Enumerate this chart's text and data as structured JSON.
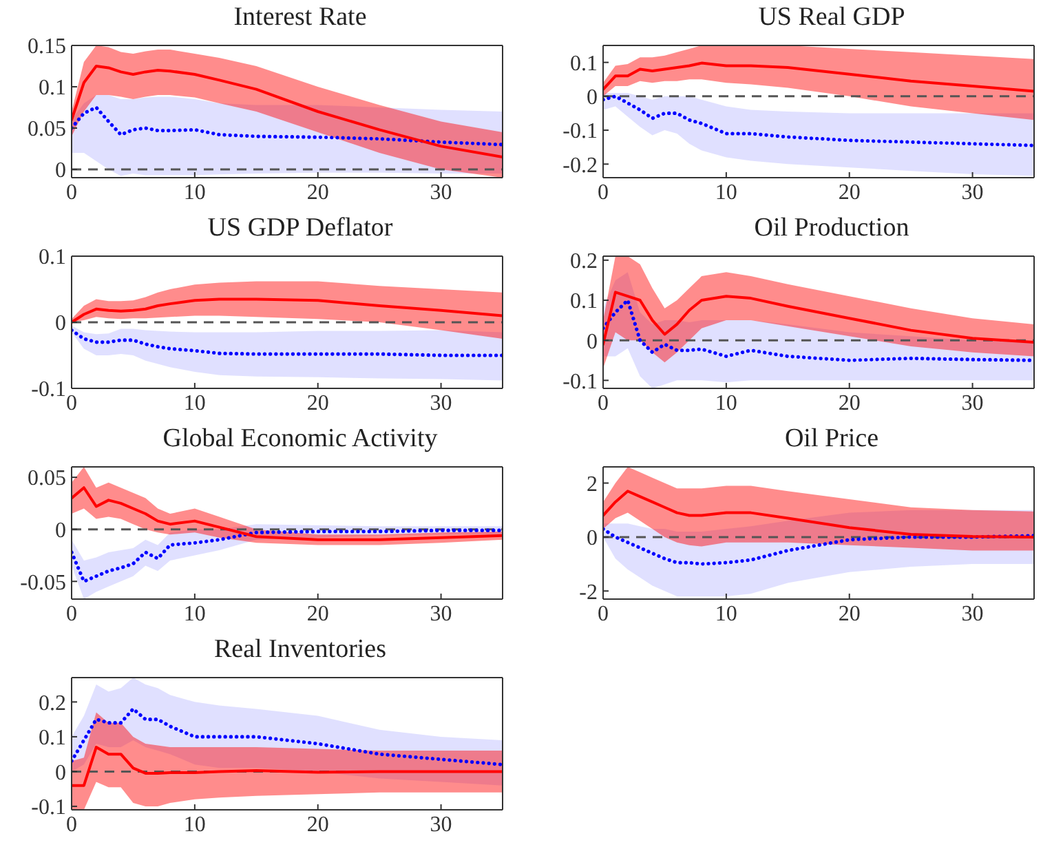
{
  "chart_data": [
    {
      "type": "line",
      "title": "Interest Rate",
      "x": [
        0,
        1,
        2,
        3,
        4,
        5,
        6,
        7,
        8,
        10,
        12,
        15,
        20,
        25,
        30,
        35
      ],
      "xlim": [
        0,
        35
      ],
      "xticks": [
        0,
        10,
        20,
        30
      ],
      "ylim": [
        -0.01,
        0.15
      ],
      "yticks": [
        0,
        0.05,
        0.1,
        0.15
      ],
      "grid": false,
      "marker": "none",
      "ref_lines": [
        {
          "axis": "y",
          "value": 0,
          "color": "#555555",
          "line_style": "dashed"
        }
      ],
      "series": [
        {
          "color": "#ff0000",
          "line_style": "solid",
          "values": [
            0.06,
            0.105,
            0.125,
            0.123,
            0.118,
            0.115,
            0.118,
            0.12,
            0.119,
            0.115,
            0.108,
            0.097,
            0.07,
            0.048,
            0.028,
            0.015
          ],
          "lower": [
            0.04,
            0.07,
            0.09,
            0.09,
            0.088,
            0.085,
            0.088,
            0.09,
            0.09,
            0.087,
            0.08,
            0.07,
            0.045,
            0.02,
            0.0,
            -0.01
          ],
          "upper": [
            0.07,
            0.13,
            0.15,
            0.148,
            0.142,
            0.14,
            0.143,
            0.145,
            0.145,
            0.14,
            0.135,
            0.125,
            0.1,
            0.078,
            0.058,
            0.045
          ]
        },
        {
          "color": "#0000ff",
          "line_style": "dotted",
          "values": [
            0.05,
            0.068,
            0.075,
            0.058,
            0.042,
            0.048,
            0.05,
            0.047,
            0.047,
            0.048,
            0.042,
            0.04,
            0.039,
            0.037,
            0.033,
            0.03
          ],
          "lower": [
            0.02,
            0.02,
            0.01,
            0.0,
            -0.008,
            -0.005,
            -0.007,
            -0.007,
            -0.007,
            -0.007,
            -0.006,
            -0.005,
            -0.004,
            -0.004,
            -0.005,
            -0.005
          ],
          "upper": [
            0.06,
            0.08,
            0.09,
            0.09,
            0.085,
            0.085,
            0.087,
            0.088,
            0.088,
            0.085,
            0.08,
            0.078,
            0.078,
            0.075,
            0.072,
            0.07
          ]
        }
      ]
    },
    {
      "type": "line",
      "title": "US Real GDP",
      "x": [
        0,
        1,
        2,
        3,
        4,
        5,
        6,
        7,
        8,
        10,
        12,
        15,
        20,
        25,
        30,
        35
      ],
      "xlim": [
        0,
        35
      ],
      "xticks": [
        0,
        10,
        20,
        30
      ],
      "ylim": [
        -0.24,
        0.15
      ],
      "yticks": [
        -0.2,
        -0.1,
        0,
        0.1
      ],
      "grid": false,
      "marker": "none",
      "ref_lines": [
        {
          "axis": "y",
          "value": 0,
          "color": "#555555",
          "line_style": "dashed"
        }
      ],
      "series": [
        {
          "color": "#ff0000",
          "line_style": "solid",
          "values": [
            0.02,
            0.06,
            0.06,
            0.08,
            0.075,
            0.08,
            0.085,
            0.09,
            0.098,
            0.09,
            0.09,
            0.085,
            0.065,
            0.045,
            0.03,
            0.015
          ],
          "lower": [
            0.0,
            0.03,
            0.03,
            0.045,
            0.04,
            0.045,
            0.045,
            0.05,
            0.05,
            0.04,
            0.035,
            0.025,
            0.0,
            -0.03,
            -0.05,
            -0.07
          ],
          "upper": [
            0.04,
            0.09,
            0.095,
            0.115,
            0.115,
            0.12,
            0.13,
            0.14,
            0.15,
            0.15,
            0.15,
            0.15,
            0.14,
            0.13,
            0.12,
            0.11
          ]
        },
        {
          "color": "#0000ff",
          "line_style": "dotted",
          "values": [
            -0.01,
            0.0,
            -0.02,
            -0.04,
            -0.065,
            -0.05,
            -0.05,
            -0.07,
            -0.08,
            -0.11,
            -0.11,
            -0.12,
            -0.13,
            -0.135,
            -0.14,
            -0.145
          ],
          "lower": [
            -0.04,
            -0.03,
            -0.06,
            -0.09,
            -0.115,
            -0.1,
            -0.11,
            -0.14,
            -0.16,
            -0.18,
            -0.19,
            -0.2,
            -0.21,
            -0.22,
            -0.23,
            -0.235
          ],
          "upper": [
            0.01,
            0.01,
            0.01,
            0.0,
            -0.01,
            0.0,
            0.0,
            0.0,
            -0.01,
            -0.03,
            -0.04,
            -0.045,
            -0.05,
            -0.05,
            -0.05,
            -0.05
          ]
        }
      ]
    },
    {
      "type": "line",
      "title": "US GDP Deflator",
      "x": [
        0,
        1,
        2,
        3,
        4,
        5,
        6,
        7,
        8,
        10,
        12,
        15,
        20,
        25,
        30,
        35
      ],
      "xlim": [
        0,
        35
      ],
      "xticks": [
        0,
        10,
        20,
        30
      ],
      "ylim": [
        -0.1,
        0.1
      ],
      "yticks": [
        -0.1,
        0,
        0.1
      ],
      "grid": false,
      "marker": "none",
      "ref_lines": [
        {
          "axis": "y",
          "value": 0,
          "color": "#555555",
          "line_style": "dashed"
        }
      ],
      "series": [
        {
          "color": "#ff0000",
          "line_style": "solid",
          "values": [
            0,
            0.012,
            0.02,
            0.018,
            0.017,
            0.018,
            0.02,
            0.025,
            0.028,
            0.033,
            0.035,
            0.035,
            0.033,
            0.025,
            0.018,
            0.01
          ],
          "lower": [
            0,
            0.003,
            0.008,
            0.006,
            0.005,
            0.006,
            0.006,
            0.007,
            0.008,
            0.01,
            0.01,
            0.008,
            0.005,
            0.0,
            -0.012,
            -0.025
          ],
          "upper": [
            0.005,
            0.025,
            0.035,
            0.032,
            0.032,
            0.033,
            0.038,
            0.045,
            0.05,
            0.057,
            0.06,
            0.062,
            0.062,
            0.055,
            0.05,
            0.045
          ]
        },
        {
          "color": "#0000ff",
          "line_style": "dotted",
          "values": [
            -0.012,
            -0.025,
            -0.03,
            -0.03,
            -0.027,
            -0.027,
            -0.033,
            -0.037,
            -0.04,
            -0.043,
            -0.047,
            -0.048,
            -0.048,
            -0.048,
            -0.05,
            -0.05
          ],
          "lower": [
            -0.015,
            -0.04,
            -0.05,
            -0.05,
            -0.048,
            -0.05,
            -0.058,
            -0.063,
            -0.068,
            -0.075,
            -0.08,
            -0.082,
            -0.083,
            -0.085,
            -0.086,
            -0.088
          ],
          "upper": [
            -0.005,
            -0.015,
            -0.018,
            -0.017,
            -0.01,
            -0.01,
            -0.012,
            -0.013,
            -0.014,
            -0.015,
            -0.015,
            -0.015,
            -0.013,
            -0.013,
            -0.012,
            -0.015
          ]
        }
      ]
    },
    {
      "type": "line",
      "title": "Oil Production",
      "x": [
        0,
        1,
        2,
        3,
        4,
        5,
        6,
        7,
        8,
        10,
        12,
        15,
        20,
        25,
        30,
        35
      ],
      "xlim": [
        0,
        35
      ],
      "xticks": [
        0,
        10,
        20,
        30
      ],
      "ylim": [
        -0.12,
        0.21
      ],
      "yticks": [
        -0.1,
        0,
        0.1,
        0.2
      ],
      "grid": false,
      "marker": "none",
      "ref_lines": [
        {
          "axis": "y",
          "value": 0,
          "color": "#555555",
          "line_style": "dashed"
        }
      ],
      "series": [
        {
          "color": "#ff0000",
          "line_style": "solid",
          "values": [
            -0.01,
            0.12,
            0.11,
            0.1,
            0.05,
            0.015,
            0.04,
            0.075,
            0.1,
            0.11,
            0.105,
            0.085,
            0.055,
            0.025,
            0.005,
            -0.005
          ],
          "lower": [
            -0.07,
            0.02,
            0.0,
            0.0,
            -0.03,
            -0.055,
            -0.03,
            0.0,
            0.03,
            0.05,
            0.05,
            0.035,
            0.01,
            -0.015,
            -0.03,
            -0.04
          ],
          "upper": [
            0.05,
            0.21,
            0.21,
            0.19,
            0.13,
            0.08,
            0.1,
            0.13,
            0.16,
            0.17,
            0.16,
            0.14,
            0.11,
            0.08,
            0.055,
            0.04
          ]
        },
        {
          "color": "#0000ff",
          "line_style": "dotted",
          "values": [
            0.03,
            0.07,
            0.1,
            0.0,
            -0.03,
            -0.01,
            -0.025,
            -0.025,
            -0.022,
            -0.04,
            -0.025,
            -0.04,
            -0.05,
            -0.045,
            -0.048,
            -0.05
          ],
          "lower": [
            -0.04,
            -0.04,
            -0.02,
            -0.09,
            -0.12,
            -0.11,
            -0.1,
            -0.1,
            -0.1,
            -0.105,
            -0.1,
            -0.1,
            -0.1,
            -0.1,
            -0.1,
            -0.1
          ],
          "upper": [
            0.08,
            0.15,
            0.17,
            0.07,
            0.04,
            0.05,
            0.05,
            0.045,
            0.05,
            0.05,
            0.05,
            0.04,
            0.02,
            0.01,
            0.0,
            -0.005
          ]
        }
      ]
    },
    {
      "type": "line",
      "title": "Global Economic Activity",
      "x": [
        0,
        1,
        2,
        3,
        4,
        5,
        6,
        7,
        8,
        10,
        12,
        15,
        20,
        25,
        30,
        35
      ],
      "xlim": [
        0,
        35
      ],
      "xticks": [
        0,
        10,
        20,
        30
      ],
      "ylim": [
        -0.067,
        0.06
      ],
      "yticks": [
        -0.05,
        0,
        0.05
      ],
      "grid": false,
      "marker": "none",
      "ref_lines": [
        {
          "axis": "y",
          "value": 0,
          "color": "#555555",
          "line_style": "dashed"
        }
      ],
      "series": [
        {
          "color": "#ff0000",
          "line_style": "solid",
          "values": [
            0.03,
            0.04,
            0.022,
            0.028,
            0.025,
            0.02,
            0.015,
            0.008,
            0.005,
            0.008,
            0.002,
            -0.007,
            -0.01,
            -0.01,
            -0.008,
            -0.006
          ],
          "lower": [
            0.015,
            0.02,
            0.01,
            0.012,
            0.01,
            0.005,
            0.0,
            -0.003,
            -0.005,
            -0.003,
            -0.008,
            -0.013,
            -0.015,
            -0.015,
            -0.013,
            -0.01
          ],
          "upper": [
            0.045,
            0.06,
            0.04,
            0.045,
            0.04,
            0.035,
            0.03,
            0.02,
            0.015,
            0.02,
            0.012,
            0.0,
            -0.005,
            -0.005,
            -0.003,
            -0.002
          ]
        },
        {
          "color": "#0000ff",
          "line_style": "dotted",
          "values": [
            -0.022,
            -0.05,
            -0.045,
            -0.04,
            -0.037,
            -0.033,
            -0.022,
            -0.028,
            -0.015,
            -0.013,
            -0.01,
            -0.003,
            -0.002,
            -0.002,
            -0.001,
            -0.001
          ],
          "lower": [
            -0.035,
            -0.067,
            -0.06,
            -0.055,
            -0.05,
            -0.045,
            -0.035,
            -0.04,
            -0.03,
            -0.025,
            -0.02,
            -0.01,
            -0.008,
            -0.006,
            -0.005,
            -0.005
          ],
          "upper": [
            -0.01,
            -0.03,
            -0.027,
            -0.022,
            -0.02,
            -0.018,
            -0.01,
            -0.015,
            -0.003,
            0.0,
            0.0,
            0.005,
            0.004,
            0.003,
            0.003,
            0.003
          ]
        }
      ]
    },
    {
      "type": "line",
      "title": "Oil Price",
      "x": [
        0,
        1,
        2,
        3,
        4,
        5,
        6,
        7,
        8,
        10,
        12,
        15,
        20,
        25,
        30,
        35
      ],
      "xlim": [
        0,
        35
      ],
      "xticks": [
        0,
        10,
        20,
        30
      ],
      "ylim": [
        -2.3,
        2.6
      ],
      "yticks": [
        -2,
        0,
        2
      ],
      "grid": false,
      "marker": "none",
      "ref_lines": [
        {
          "axis": "y",
          "value": 0,
          "color": "#555555",
          "line_style": "dashed"
        }
      ],
      "series": [
        {
          "color": "#ff0000",
          "line_style": "solid",
          "values": [
            0.8,
            1.3,
            1.7,
            1.5,
            1.3,
            1.1,
            0.9,
            0.8,
            0.8,
            0.9,
            0.9,
            0.7,
            0.35,
            0.1,
            0.02,
            0.0
          ],
          "lower": [
            0.3,
            0.7,
            0.9,
            0.6,
            0.3,
            0.0,
            -0.2,
            -0.3,
            -0.35,
            -0.2,
            -0.2,
            -0.2,
            -0.3,
            -0.4,
            -0.5,
            -0.5
          ],
          "upper": [
            1.3,
            2.0,
            2.6,
            2.4,
            2.2,
            2.0,
            1.8,
            1.8,
            1.8,
            1.9,
            1.9,
            1.7,
            1.4,
            1.1,
            1.0,
            0.95
          ]
        },
        {
          "color": "#0000ff",
          "line_style": "dotted",
          "values": [
            0.3,
            0.0,
            -0.2,
            -0.4,
            -0.6,
            -0.8,
            -0.95,
            -0.95,
            -1.0,
            -0.95,
            -0.85,
            -0.5,
            -0.1,
            0.0,
            0.0,
            0.05
          ],
          "lower": [
            0.0,
            -0.8,
            -1.2,
            -1.5,
            -1.8,
            -2.0,
            -2.2,
            -2.2,
            -2.2,
            -2.2,
            -2.1,
            -1.7,
            -1.3,
            -1.1,
            -1.0,
            -1.0
          ],
          "upper": [
            0.5,
            0.5,
            0.5,
            0.4,
            0.3,
            0.3,
            0.2,
            0.2,
            0.2,
            0.3,
            0.4,
            0.6,
            0.9,
            1.0,
            1.0,
            1.0
          ]
        }
      ]
    },
    {
      "type": "line",
      "title": "Real Inventories",
      "x": [
        0,
        1,
        2,
        3,
        4,
        5,
        6,
        7,
        8,
        10,
        12,
        15,
        20,
        25,
        30,
        35
      ],
      "xlim": [
        0,
        35
      ],
      "xticks": [
        0,
        10,
        20,
        30
      ],
      "ylim": [
        -0.11,
        0.27
      ],
      "yticks": [
        -0.1,
        0,
        0.1,
        0.2
      ],
      "grid": false,
      "marker": "none",
      "ref_lines": [
        {
          "axis": "y",
          "value": 0,
          "color": "#555555",
          "line_style": "dashed"
        }
      ],
      "series": [
        {
          "color": "#ff0000",
          "line_style": "solid",
          "values": [
            -0.04,
            -0.04,
            0.07,
            0.05,
            0.05,
            0.01,
            -0.005,
            -0.005,
            -0.003,
            -0.003,
            0.0,
            0.003,
            -0.002,
            0.0,
            0.0,
            0.0
          ],
          "lower": [
            -0.11,
            -0.11,
            -0.03,
            -0.045,
            -0.045,
            -0.09,
            -0.1,
            -0.1,
            -0.09,
            -0.08,
            -0.075,
            -0.07,
            -0.065,
            -0.06,
            -0.06,
            -0.06
          ],
          "upper": [
            0.03,
            0.04,
            0.17,
            0.14,
            0.14,
            0.1,
            0.08,
            0.075,
            0.07,
            0.07,
            0.07,
            0.07,
            0.065,
            0.06,
            0.06,
            0.06
          ]
        },
        {
          "color": "#0000ff",
          "line_style": "dotted",
          "values": [
            0.03,
            0.09,
            0.15,
            0.14,
            0.14,
            0.18,
            0.15,
            0.15,
            0.13,
            0.1,
            0.1,
            0.1,
            0.08,
            0.05,
            0.035,
            0.02
          ],
          "lower": [
            0.0,
            0.02,
            0.08,
            0.07,
            0.07,
            0.09,
            0.07,
            0.06,
            0.05,
            0.02,
            0.01,
            0.01,
            0.0,
            -0.02,
            -0.03,
            -0.04
          ],
          "upper": [
            0.1,
            0.16,
            0.25,
            0.23,
            0.24,
            0.27,
            0.25,
            0.24,
            0.22,
            0.2,
            0.19,
            0.18,
            0.16,
            0.12,
            0.1,
            0.09
          ]
        }
      ]
    }
  ]
}
